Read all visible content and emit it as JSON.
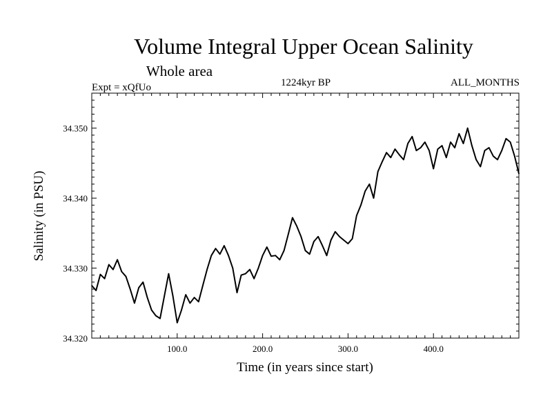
{
  "chart_data": {
    "type": "line",
    "title": "Volume Integral Upper Ocean Salinity",
    "subtitle": "Whole area",
    "experiment": "Expt = xQfUo",
    "period": "1224kyr BP",
    "months": "ALL_MONTHS",
    "xlabel": "Time (in years since start)",
    "ylabel": "Salinity (in PSU)",
    "xlim": [
      0,
      500
    ],
    "ylim": [
      34.32,
      34.355
    ],
    "xticks": [
      100,
      200,
      300,
      400
    ],
    "xtick_labels": [
      "100.0",
      "200.0",
      "300.0",
      "400.0"
    ],
    "yticks": [
      34.32,
      34.33,
      34.34,
      34.35
    ],
    "ytick_labels": [
      "34.320",
      "34.330",
      "34.340",
      "34.350"
    ],
    "series": [
      {
        "name": "salinity",
        "color": "#000000",
        "x": [
          0,
          5,
          10,
          15,
          20,
          25,
          30,
          35,
          40,
          45,
          50,
          55,
          60,
          65,
          70,
          75,
          80,
          85,
          90,
          95,
          100,
          105,
          110,
          115,
          120,
          125,
          130,
          135,
          140,
          145,
          150,
          155,
          160,
          165,
          170,
          175,
          180,
          185,
          190,
          195,
          200,
          205,
          210,
          215,
          220,
          225,
          230,
          235,
          240,
          245,
          250,
          255,
          260,
          265,
          270,
          275,
          280,
          285,
          290,
          295,
          300,
          305,
          310,
          315,
          320,
          325,
          330,
          335,
          340,
          345,
          350,
          355,
          360,
          365,
          370,
          375,
          380,
          385,
          390,
          395,
          400,
          405,
          410,
          415,
          420,
          425,
          430,
          435,
          440,
          445,
          450,
          455,
          460,
          465,
          470,
          475,
          480,
          485,
          490,
          495,
          500
        ],
        "values": [
          34.3275,
          34.3268,
          34.3291,
          34.3285,
          34.3305,
          34.3298,
          34.3312,
          34.3295,
          34.3288,
          34.327,
          34.325,
          34.3272,
          34.328,
          34.3258,
          34.324,
          34.3232,
          34.3228,
          34.326,
          34.3292,
          34.326,
          34.3222,
          34.324,
          34.3262,
          34.325,
          34.3258,
          34.3252,
          34.3275,
          34.3298,
          34.3318,
          34.3328,
          34.332,
          34.3332,
          34.3318,
          34.33,
          34.3265,
          34.329,
          34.3292,
          34.3298,
          34.3285,
          34.33,
          34.3318,
          34.333,
          34.3317,
          34.3318,
          34.3312,
          34.3325,
          34.3348,
          34.3372,
          34.336,
          34.3345,
          34.3325,
          34.332,
          34.3338,
          34.3345,
          34.3332,
          34.3318,
          34.334,
          34.3352,
          34.3345,
          34.334,
          34.3335,
          34.3342,
          34.3375,
          34.339,
          34.341,
          34.342,
          34.34,
          34.3438,
          34.3452,
          34.3465,
          34.3458,
          34.347,
          34.3462,
          34.3455,
          34.3478,
          34.3488,
          34.3468,
          34.3472,
          34.348,
          34.3468,
          34.3442,
          34.347,
          34.3475,
          34.3458,
          34.348,
          34.3472,
          34.3492,
          34.3478,
          34.35,
          34.3475,
          34.3455,
          34.3445,
          34.3468,
          34.3472,
          34.346,
          34.3455,
          34.3468,
          34.3485,
          34.348,
          34.346,
          34.3435
        ]
      }
    ],
    "grid": false,
    "legend": "none"
  }
}
